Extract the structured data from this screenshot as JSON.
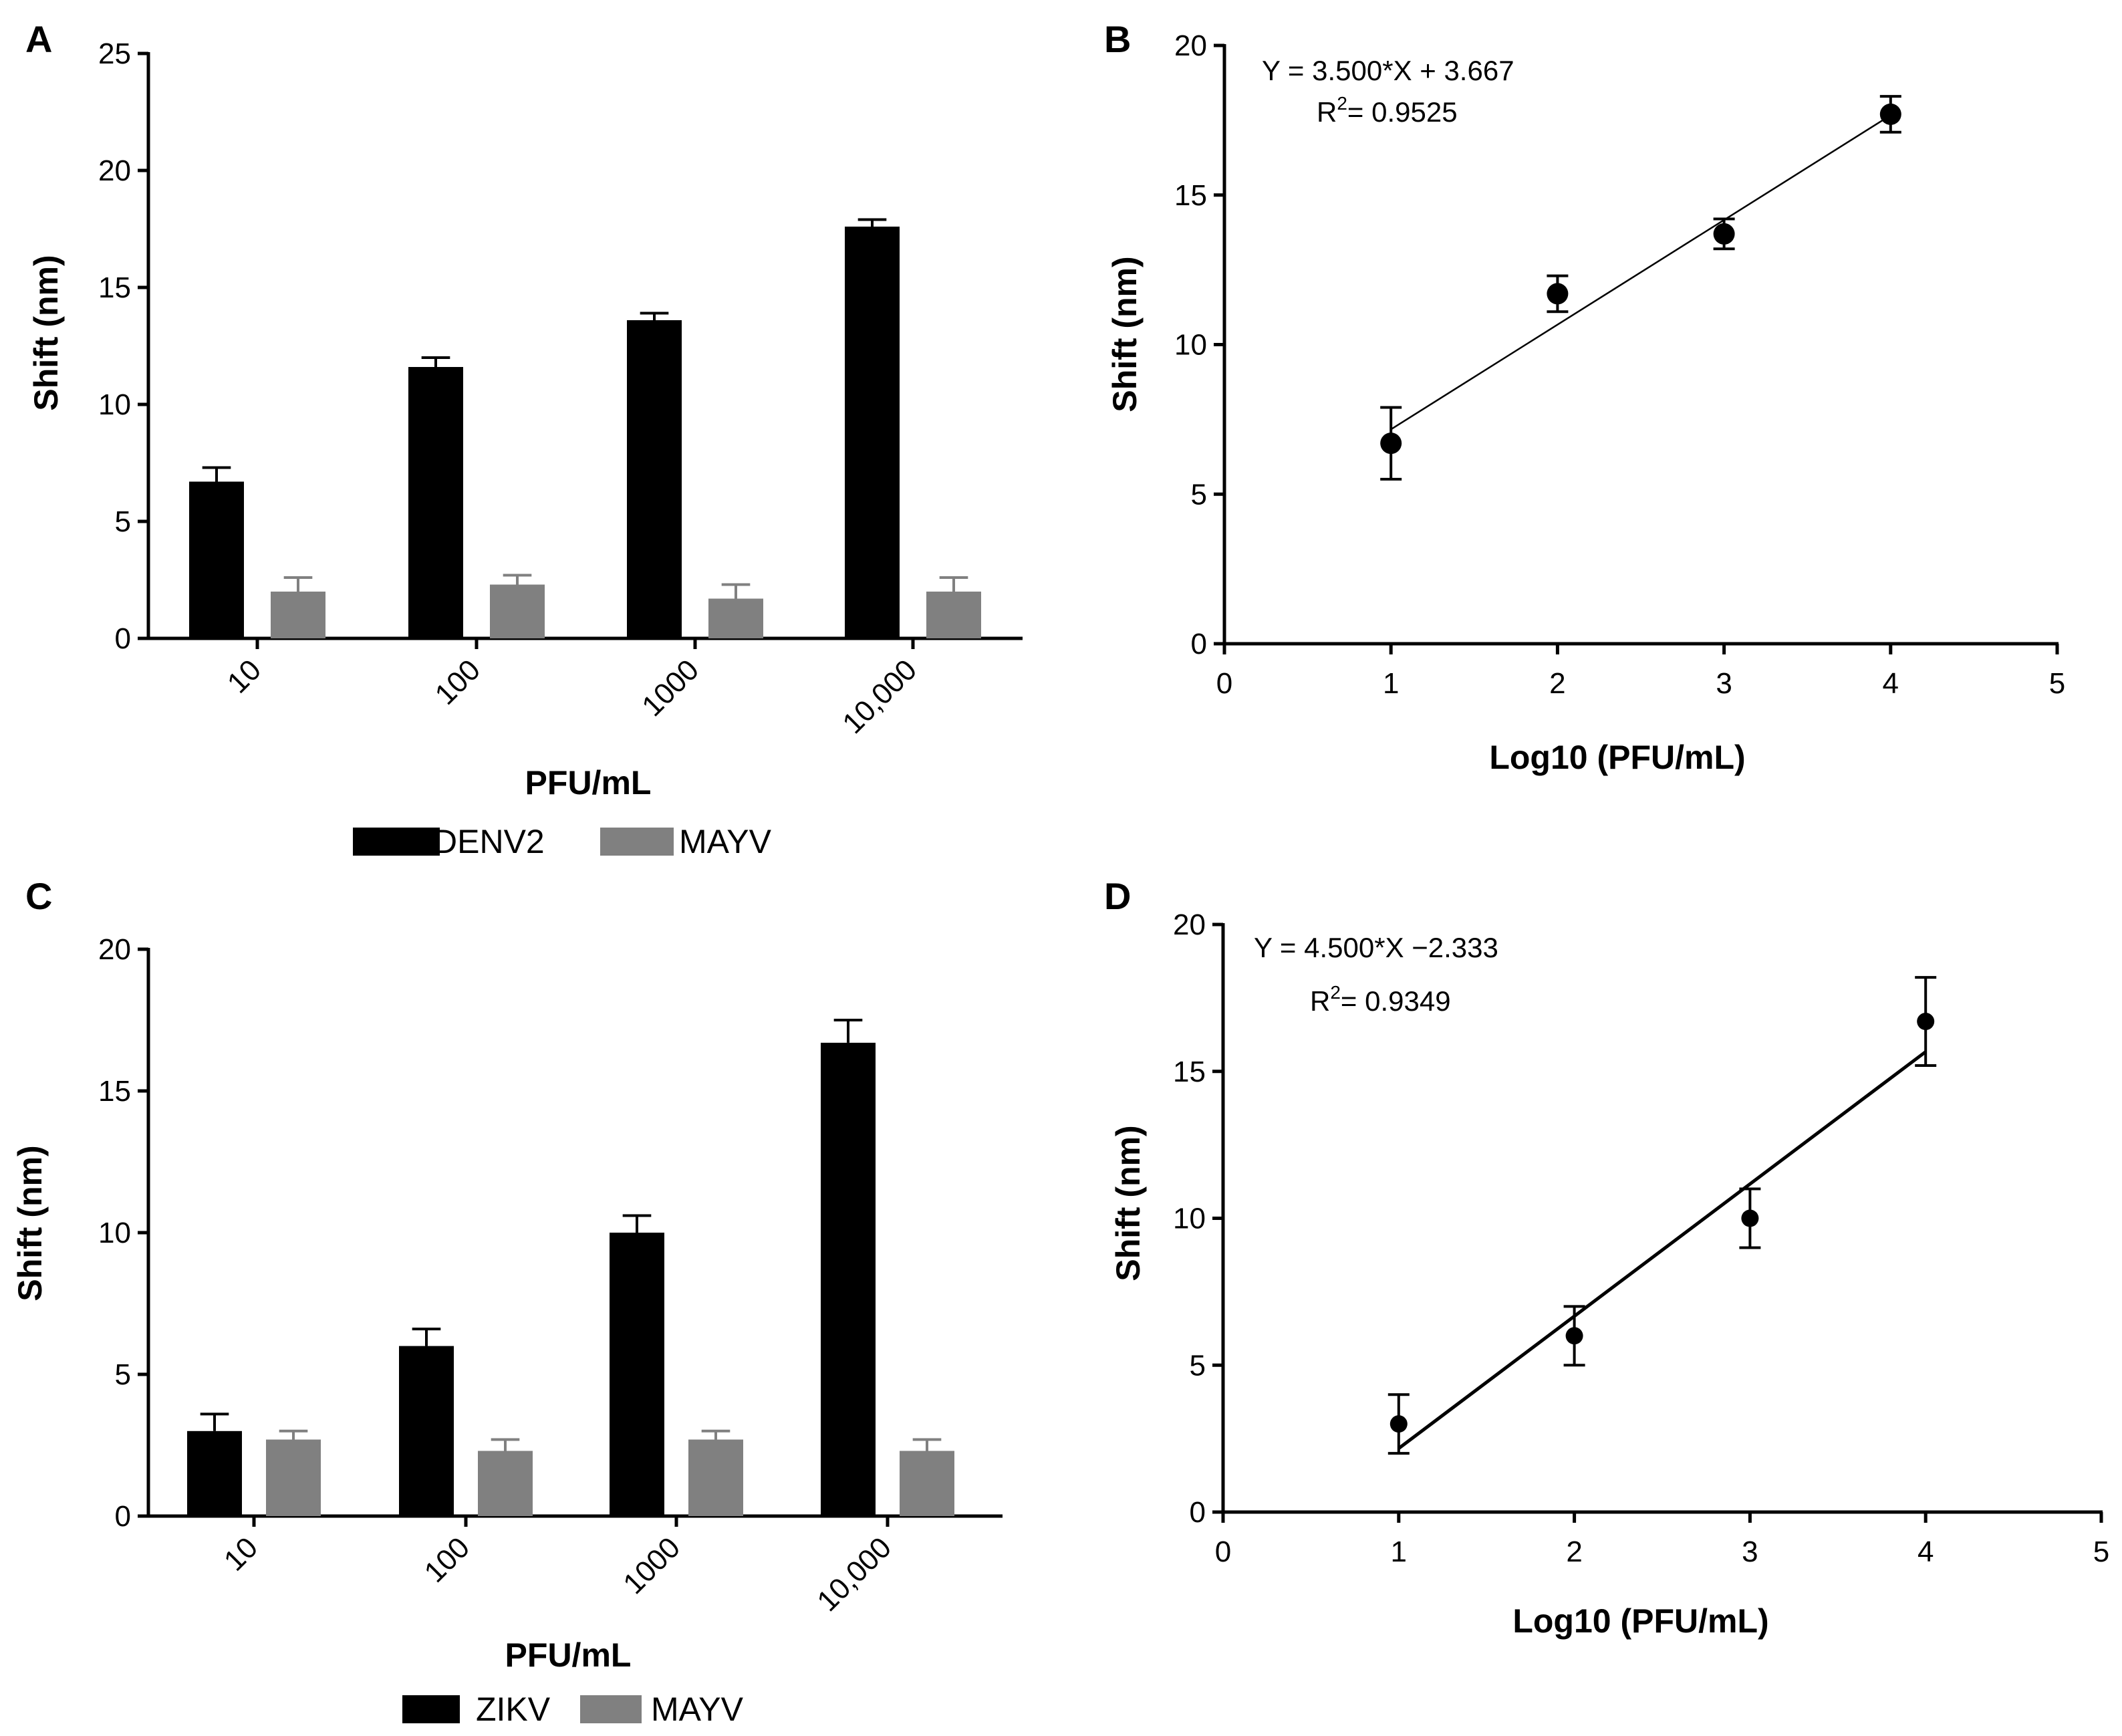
{
  "colors": {
    "series_dark": "#000000",
    "series_gray": "#808080"
  },
  "chart_data": [
    {
      "panel": "A",
      "type": "bar",
      "xlabel": "PFU/mL",
      "ylabel": "Shift (nm)",
      "categories": [
        "10",
        "100",
        "1000",
        "10,000"
      ],
      "ylim": [
        0,
        25
      ],
      "yticks": [
        0,
        5,
        10,
        15,
        20,
        25
      ],
      "series": [
        {
          "name": "DENV2",
          "color": "#000000",
          "values": [
            6.7,
            11.6,
            13.6,
            17.6
          ],
          "errors": [
            0.6,
            0.4,
            0.3,
            0.3
          ]
        },
        {
          "name": "MAYV",
          "color": "#808080",
          "values": [
            2.0,
            2.3,
            1.7,
            2.0
          ],
          "errors": [
            0.6,
            0.4,
            0.6,
            0.6
          ]
        }
      ],
      "legend": [
        "DENV2",
        "MAYV"
      ]
    },
    {
      "panel": "B",
      "type": "scatter",
      "xlabel": "Log10 (PFU/mL)",
      "ylabel": "Shift (nm)",
      "xlim": [
        0,
        5
      ],
      "ylim": [
        0,
        20
      ],
      "xticks": [
        0,
        1,
        2,
        3,
        4,
        5
      ],
      "yticks": [
        0,
        5,
        10,
        15,
        20
      ],
      "x": [
        1,
        2,
        3,
        4
      ],
      "y": [
        6.7,
        11.7,
        13.7,
        17.7
      ],
      "errors": [
        1.2,
        0.6,
        0.5,
        0.6
      ],
      "fit": {
        "slope": 3.5,
        "intercept": 3.667,
        "x_range": [
          1,
          4
        ]
      },
      "equation": "Y = 3.500*X + 3.667",
      "r2_prefix": "R",
      "r2_sup": "2",
      "r2_value": "= 0.9525"
    },
    {
      "panel": "C",
      "type": "bar",
      "xlabel": "PFU/mL",
      "ylabel": "Shift (nm)",
      "categories": [
        "10",
        "100",
        "1000",
        "10,000"
      ],
      "ylim": [
        0,
        20
      ],
      "yticks": [
        0,
        5,
        10,
        15,
        20
      ],
      "series": [
        {
          "name": "ZIKV",
          "color": "#000000",
          "values": [
            3.0,
            6.0,
            10.0,
            16.7
          ],
          "errors": [
            0.6,
            0.6,
            0.6,
            0.8
          ]
        },
        {
          "name": "MAYV",
          "color": "#808080",
          "values": [
            2.7,
            2.3,
            2.7,
            2.3
          ],
          "errors": [
            0.3,
            0.4,
            0.3,
            0.4
          ]
        }
      ],
      "legend": [
        "ZIKV",
        "MAYV"
      ]
    },
    {
      "panel": "D",
      "type": "scatter",
      "xlabel": "Log10 (PFU/mL)",
      "ylabel": "Shift (nm)",
      "xlim": [
        0,
        5
      ],
      "ylim": [
        0,
        20
      ],
      "xticks": [
        0,
        1,
        2,
        3,
        4,
        5
      ],
      "yticks": [
        0,
        5,
        10,
        15,
        20
      ],
      "x": [
        1,
        2,
        3,
        4
      ],
      "y": [
        3.0,
        6.0,
        10.0,
        16.7
      ],
      "errors": [
        1.0,
        1.0,
        1.0,
        1.5
      ],
      "fit": {
        "slope": 4.5,
        "intercept": -2.333,
        "x_range": [
          1,
          4
        ]
      },
      "equation": "Y = 4.500*X −2.333",
      "r2_prefix": "R",
      "r2_sup": "2",
      "r2_value": "= 0.9349"
    }
  ]
}
